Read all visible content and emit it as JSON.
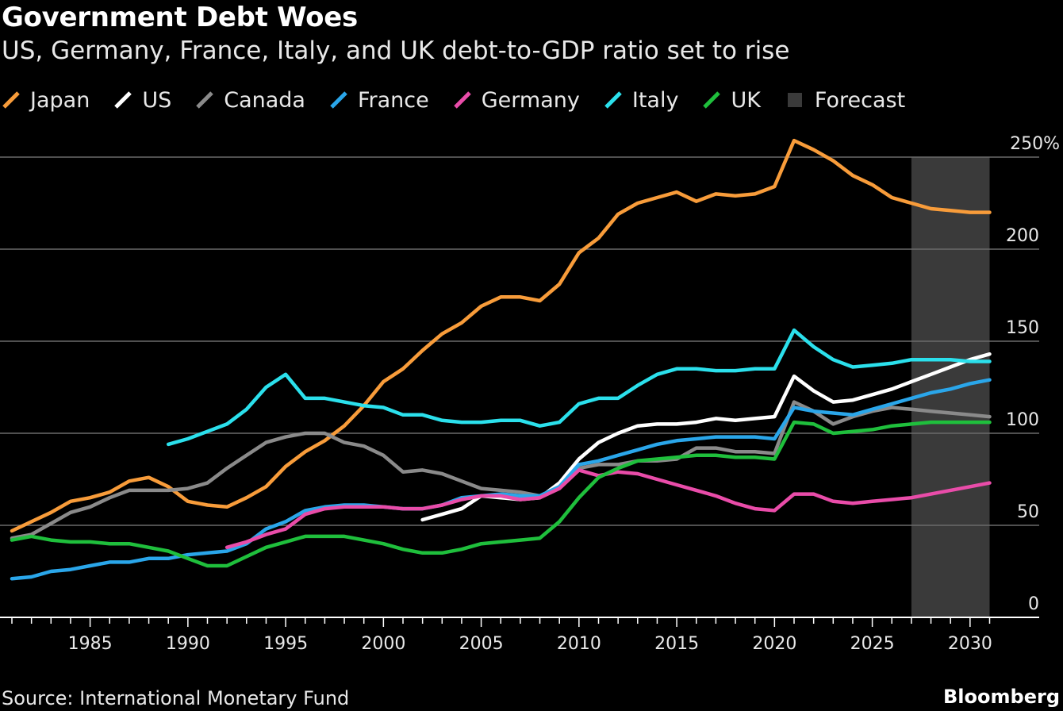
{
  "header": {
    "title": "Government Debt Woes",
    "subtitle": "US, Germany, France, Italy, and UK debt-to-GDP ratio set to rise"
  },
  "footer": {
    "source": "Source: International Monetary Fund",
    "brand": "Bloomberg"
  },
  "chart_data": {
    "type": "line",
    "title": "Government Debt Woes",
    "subtitle": "US, Germany, France, Italy, and UK debt-to-GDP ratio set to rise",
    "xlabel": "",
    "ylabel": "",
    "xlim": [
      1981,
      2031
    ],
    "ylim": [
      0,
      250
    ],
    "y_ticks": [
      0,
      50,
      100,
      150,
      200,
      250
    ],
    "y_tick_labels": [
      "0",
      "50",
      "100",
      "150",
      "200",
      "250%"
    ],
    "x_ticks": [
      1985,
      1990,
      1995,
      2000,
      2005,
      2010,
      2015,
      2020,
      2025,
      2030
    ],
    "x_tick_labels": [
      "1985",
      "1990",
      "1995",
      "2000",
      "2005",
      "2010",
      "2015",
      "2020",
      "2025",
      "2030"
    ],
    "grid": true,
    "legend": "top",
    "forecast": {
      "label": "Forecast",
      "start": 2027,
      "end": 2031,
      "color": "#3a3a3a"
    },
    "series": [
      {
        "name": "Japan",
        "color": "#f89c3a",
        "start": 1981,
        "values": [
          47,
          52,
          57,
          63,
          65,
          68,
          74,
          76,
          71,
          63,
          61,
          60,
          65,
          71,
          82,
          90,
          96,
          104,
          115,
          128,
          135,
          145,
          154,
          160,
          169,
          174,
          174,
          172,
          181,
          198,
          206,
          219,
          225,
          228,
          231,
          226,
          230,
          229,
          230,
          234,
          259,
          254,
          248,
          240,
          235,
          228,
          225,
          222,
          221,
          220,
          220
        ]
      },
      {
        "name": "US",
        "color": "#ffffff",
        "start": 2002,
        "values": [
          53,
          56,
          59,
          66,
          65,
          64,
          65,
          73,
          86,
          95,
          100,
          104,
          105,
          105,
          106,
          108,
          107,
          108,
          109,
          131,
          123,
          117,
          118,
          121,
          124,
          128,
          132,
          136,
          140,
          143
        ]
      },
      {
        "name": "Canada",
        "color": "#8a8a8a",
        "start": 1981,
        "values": [
          43,
          45,
          51,
          57,
          60,
          65,
          69,
          69,
          69,
          70,
          73,
          81,
          88,
          95,
          98,
          100,
          100,
          95,
          93,
          88,
          79,
          80,
          78,
          74,
          70,
          69,
          68,
          66,
          71,
          81,
          83,
          83,
          85,
          85,
          86,
          92,
          92,
          90,
          90,
          89,
          117,
          112,
          105,
          109,
          112,
          114,
          113,
          112,
          111,
          110,
          109
        ]
      },
      {
        "name": "France",
        "color": "#2aa6ea",
        "start": 1981,
        "values": [
          21,
          22,
          25,
          26,
          28,
          30,
          30,
          32,
          32,
          34,
          35,
          36,
          40,
          48,
          52,
          58,
          60,
          61,
          61,
          60,
          59,
          59,
          61,
          65,
          66,
          67,
          66,
          66,
          71,
          83,
          85,
          88,
          91,
          94,
          96,
          97,
          98,
          98,
          98,
          97,
          114,
          112,
          111,
          110,
          113,
          116,
          119,
          122,
          124,
          127,
          129
        ]
      },
      {
        "name": "Germany",
        "color": "#e94ca9",
        "start": 1992,
        "values": [
          38,
          41,
          45,
          48,
          56,
          59,
          60,
          60,
          60,
          59,
          59,
          61,
          64,
          66,
          66,
          64,
          65,
          70,
          80,
          77,
          79,
          78,
          75,
          72,
          69,
          66,
          62,
          59,
          58,
          67,
          67,
          63,
          62,
          63,
          64,
          65,
          67,
          69,
          71,
          73
        ]
      },
      {
        "name": "Italy",
        "color": "#2be0ec",
        "start": 1989,
        "values": [
          94,
          97,
          101,
          105,
          113,
          125,
          132,
          119,
          119,
          117,
          115,
          114,
          110,
          110,
          107,
          106,
          106,
          107,
          107,
          104,
          106,
          116,
          119,
          119,
          126,
          132,
          135,
          135,
          134,
          134,
          135,
          135,
          156,
          147,
          140,
          136,
          137,
          138,
          140,
          140,
          140,
          139,
          139
        ]
      },
      {
        "name": "UK",
        "color": "#1fbf3c",
        "start": 1981,
        "values": [
          42,
          44,
          42,
          41,
          41,
          40,
          40,
          38,
          36,
          32,
          28,
          28,
          33,
          38,
          41,
          44,
          44,
          44,
          42,
          40,
          37,
          35,
          35,
          37,
          40,
          41,
          42,
          43,
          52,
          65,
          76,
          81,
          85,
          86,
          87,
          88,
          88,
          87,
          87,
          86,
          106,
          105,
          100,
          101,
          102,
          104,
          105,
          106,
          106,
          106,
          106
        ]
      }
    ]
  }
}
